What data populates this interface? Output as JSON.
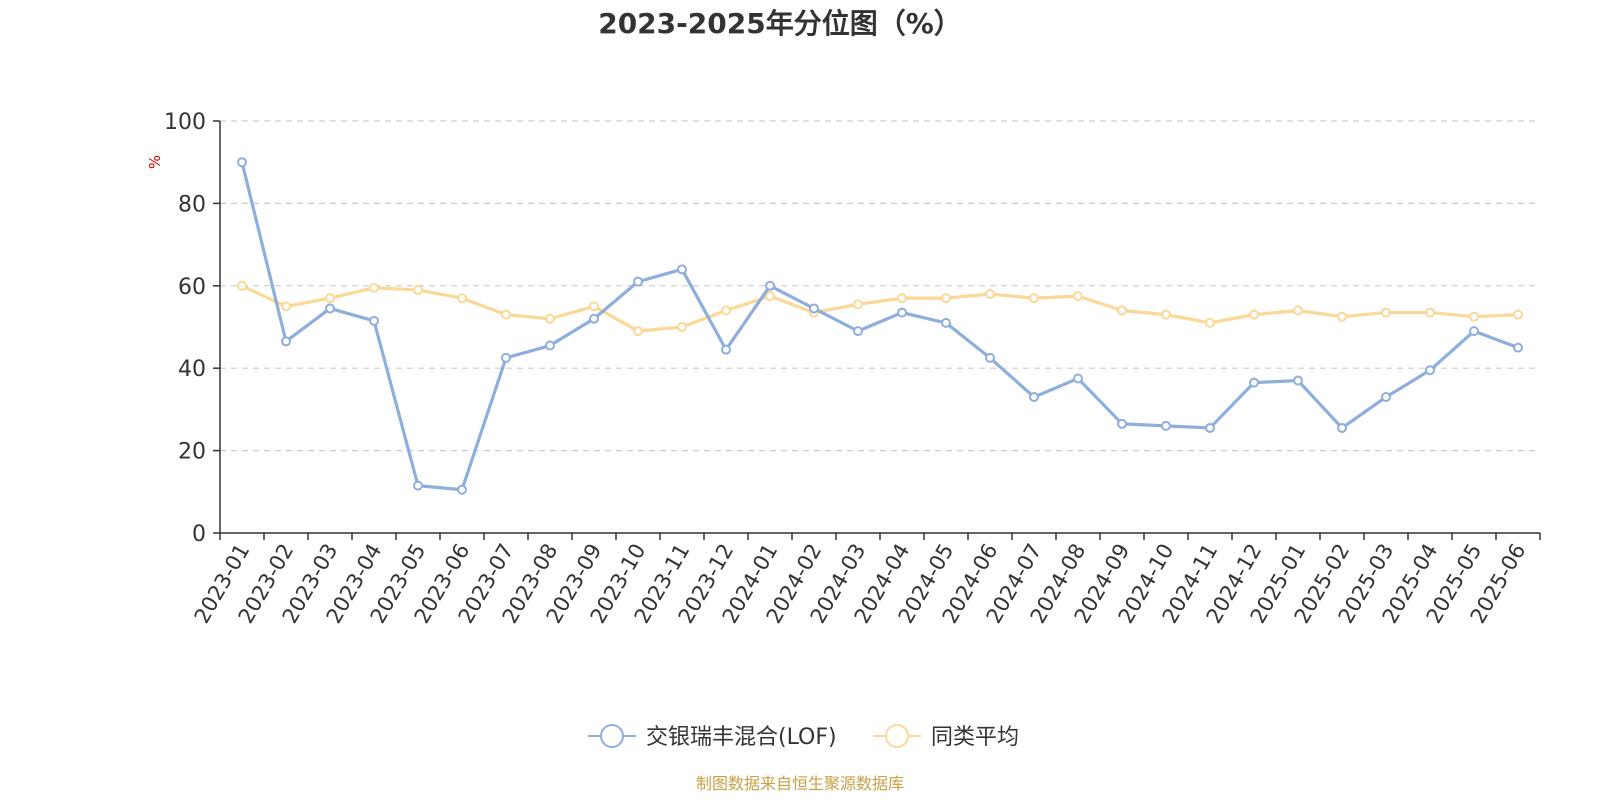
{
  "chart_data": {
    "type": "line",
    "title": "2023-2025年分位图（%）",
    "ylabel": "%",
    "xlabel": "",
    "ylim": [
      0,
      100
    ],
    "yticks": [
      0,
      20,
      40,
      60,
      80,
      100
    ],
    "grid": "horizontal dashed",
    "legend_position": "bottom-center",
    "categories": [
      "2023-01",
      "2023-02",
      "2023-03",
      "2023-04",
      "2023-05",
      "2023-06",
      "2023-07",
      "2023-08",
      "2023-09",
      "2023-10",
      "2023-11",
      "2023-12",
      "2024-01",
      "2024-02",
      "2024-03",
      "2024-04",
      "2024-05",
      "2024-06",
      "2024-07",
      "2024-08",
      "2024-09",
      "2024-10",
      "2024-11",
      "2024-12",
      "2025-01",
      "2025-02",
      "2025-03",
      "2025-04",
      "2025-05",
      "2025-06"
    ],
    "series": [
      {
        "name": "交银瑞丰混合(LOF)",
        "color": "#8eaedb",
        "values": [
          90,
          46.5,
          54.5,
          51.5,
          11.5,
          10.5,
          42.5,
          45.5,
          52,
          61,
          64,
          44.5,
          60,
          54.5,
          49,
          53.5,
          51,
          42.5,
          33,
          37.5,
          26.5,
          26,
          25.5,
          36.5,
          37,
          25.5,
          33,
          39.5,
          49,
          45
        ]
      },
      {
        "name": "同类平均",
        "color": "#fbd896",
        "values": [
          60,
          55,
          57,
          59.5,
          59,
          57,
          53,
          52,
          55,
          49,
          50,
          54,
          57.5,
          53.5,
          55.5,
          57,
          57,
          58,
          57,
          57.5,
          54,
          53,
          51,
          53,
          54,
          52.5,
          53.5,
          53.5,
          52.5,
          53
        ]
      }
    ]
  },
  "source_text": "制图数据来自恒生聚源数据库"
}
